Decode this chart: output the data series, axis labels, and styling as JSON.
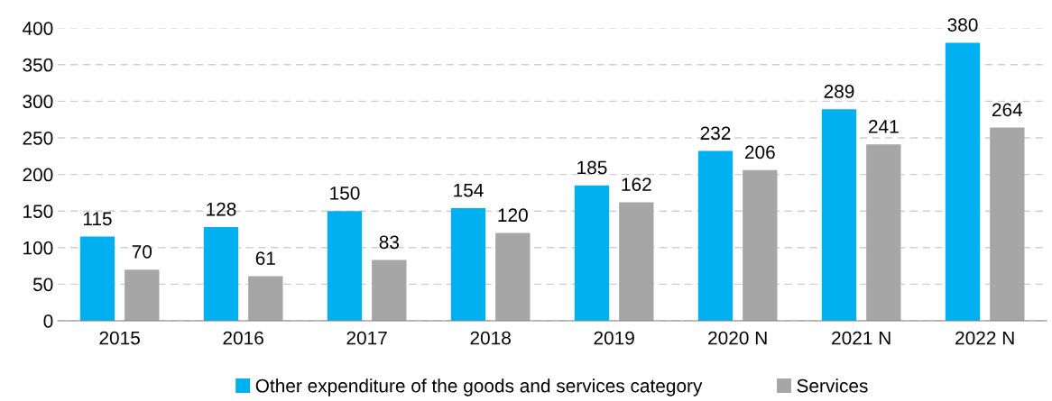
{
  "chart_data": {
    "type": "bar",
    "categories": [
      "2015",
      "2016",
      "2017",
      "2018",
      "2019",
      "2020 N",
      "2021 N",
      "2022 N"
    ],
    "series": [
      {
        "name": "Other expenditure of the goods and services category",
        "color": "#00b0f0",
        "values": [
          115,
          128,
          150,
          154,
          185,
          232,
          289,
          380
        ]
      },
      {
        "name": "Services",
        "color": "#a6a6a6",
        "values": [
          70,
          61,
          83,
          120,
          162,
          206,
          241,
          264
        ]
      }
    ],
    "ylim": [
      0,
      400
    ],
    "yticks": [
      0,
      50,
      100,
      150,
      200,
      250,
      300,
      350,
      400
    ],
    "grid": "y",
    "legend": "bottom",
    "data_labels": true
  }
}
